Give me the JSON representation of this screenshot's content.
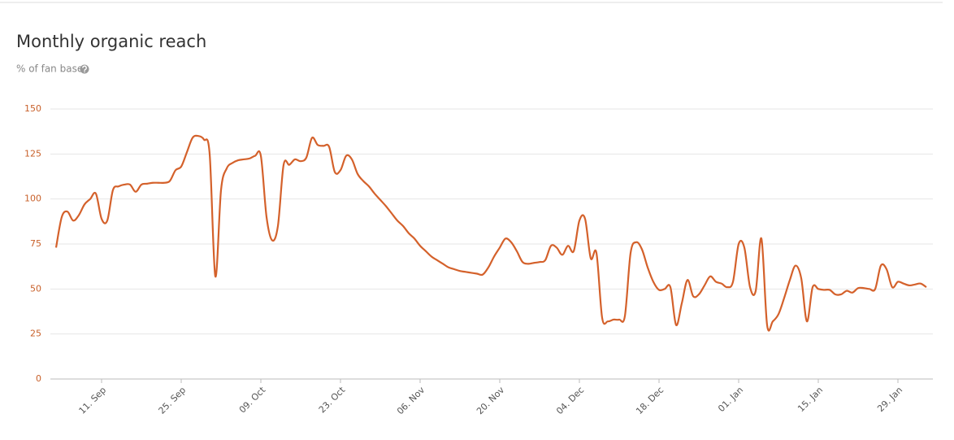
{
  "chart_data": {
    "type": "line",
    "title": "Monthly organic reach",
    "subtitle": "% of fan base",
    "categories": [
      null,
      null,
      null,
      null,
      null,
      null,
      null,
      null,
      "11. Sep",
      null,
      null,
      null,
      null,
      null,
      null,
      null,
      null,
      null,
      null,
      null,
      null,
      null,
      "25. Sep",
      null,
      null,
      null,
      null,
      null,
      null,
      null,
      null,
      null,
      null,
      null,
      null,
      null,
      "09. Oct",
      null,
      null,
      null,
      null,
      null,
      null,
      null,
      null,
      null,
      null,
      null,
      null,
      null,
      "23. Oct",
      null,
      null,
      null,
      null,
      null,
      null,
      null,
      null,
      null,
      null,
      null,
      null,
      null,
      "06. Nov",
      null,
      null,
      null,
      null,
      null,
      null,
      null,
      null,
      null,
      null,
      null,
      null,
      null,
      "20. Nov",
      null,
      null,
      null,
      null,
      null,
      null,
      null,
      null,
      null,
      null,
      null,
      null,
      null,
      "04. Dec",
      null,
      null,
      null,
      null,
      null,
      null,
      null,
      null,
      null,
      null,
      null,
      null,
      null,
      "18. Dec",
      null,
      null,
      null,
      null,
      null,
      null,
      null,
      null,
      null,
      null,
      null,
      null,
      null,
      "01. Jan",
      null,
      null,
      null,
      null,
      null,
      null,
      null,
      null,
      null,
      null,
      null,
      null,
      null,
      "15. Jan",
      null,
      null,
      null,
      null,
      null,
      null,
      null,
      null,
      null,
      null,
      null,
      null,
      null,
      "29. Jan",
      null,
      null,
      null,
      null,
      null
    ],
    "values": [
      73,
      90,
      93,
      88,
      91,
      97,
      100,
      103,
      89,
      88,
      105,
      107,
      108,
      108,
      104,
      108,
      108.5,
      109,
      109,
      109,
      110,
      116,
      118,
      126,
      134,
      135,
      133,
      125,
      57,
      105,
      117,
      120,
      121.5,
      122,
      122.5,
      124,
      124,
      90,
      77,
      85,
      119,
      119,
      122,
      121,
      123,
      134,
      130,
      129.5,
      129,
      115,
      116,
      124,
      122,
      114,
      110,
      107,
      103,
      99.5,
      96,
      92,
      88,
      85,
      81,
      78,
      74,
      71,
      68,
      66,
      64,
      62,
      61,
      60,
      59.5,
      59,
      58.5,
      58,
      62,
      68,
      73,
      78,
      76,
      71,
      65,
      64,
      64.5,
      65,
      66,
      74,
      73,
      69,
      74,
      71,
      88,
      89,
      67,
      70,
      34,
      32,
      33,
      33,
      35,
      70,
      76,
      72,
      62,
      54,
      49.5,
      50,
      51,
      30,
      42,
      55,
      46,
      47,
      52,
      57,
      54,
      53,
      51,
      54,
      75,
      73,
      51,
      49,
      78,
      30,
      32,
      36,
      45,
      55,
      63,
      56,
      32,
      51,
      50,
      49.5,
      49.5,
      47,
      47,
      49,
      48,
      50.5,
      50.5,
      50,
      50,
      63,
      61,
      51,
      54,
      53,
      52,
      52.5,
      53,
      51
    ],
    "color": "#d4612b",
    "ylim": [
      0,
      150
    ],
    "yticks": [
      0,
      25,
      50,
      75,
      100,
      125,
      150
    ],
    "grid": true
  }
}
